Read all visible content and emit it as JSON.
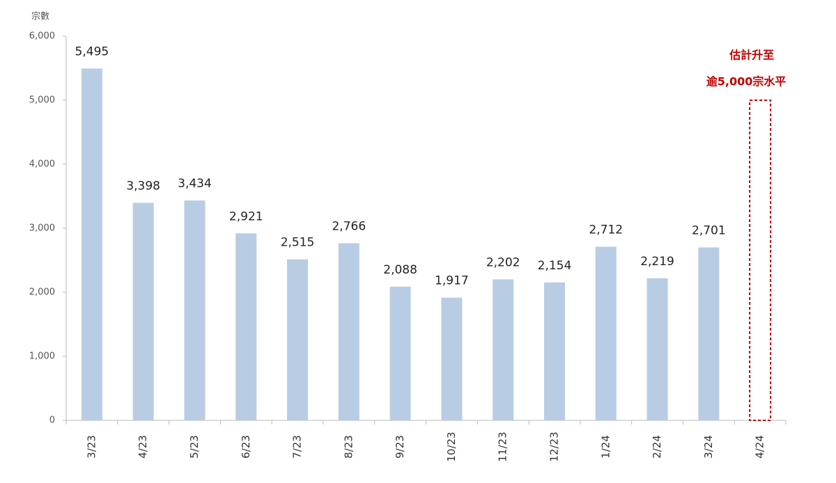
{
  "chart_data": {
    "type": "bar",
    "y_axis_label": "宗數",
    "categories": [
      "3/23",
      "4/23",
      "5/23",
      "6/23",
      "7/23",
      "8/23",
      "9/23",
      "10/23",
      "11/23",
      "12/23",
      "1/24",
      "2/24",
      "3/24",
      "4/24"
    ],
    "values": [
      5495,
      3398,
      3434,
      2921,
      2515,
      2766,
      2088,
      1917,
      2202,
      2154,
      2712,
      2219,
      2701,
      null
    ],
    "value_labels": [
      "5,495",
      "3,398",
      "3,434",
      "2,921",
      "2,515",
      "2,766",
      "2,088",
      "1,917",
      "2,202",
      "2,154",
      "2,712",
      "2,219",
      "2,701",
      null
    ],
    "color": "#b8cce4",
    "estimate": {
      "value": 5000,
      "color": "#c00000",
      "annotation": [
        "估計升至",
        "逾5,000宗水平"
      ]
    },
    "ylim": [
      0,
      6000
    ],
    "yticks": [
      0,
      {
        "value": 1000,
        "label": "1,000"
      },
      {
        "value": 2000,
        "label": "2,000"
      },
      {
        "value": 3000,
        "label": "3,000"
      },
      {
        "value": 4000,
        "label": "4,000"
      },
      {
        "value": 5000,
        "label": "5,000"
      },
      {
        "value": 6000,
        "label": "6,000"
      }
    ],
    "grid": false
  }
}
